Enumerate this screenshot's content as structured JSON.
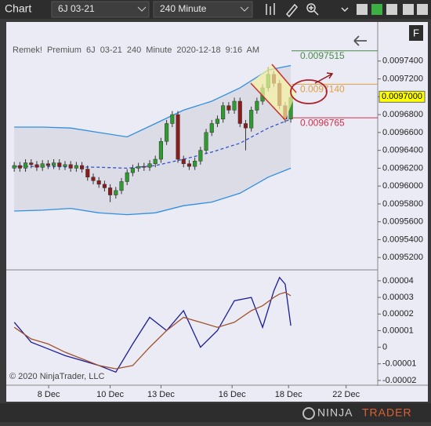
{
  "toolbar": {
    "title": "Chart",
    "instrument": "6J 03-21",
    "interval": "240 Minute",
    "panel_button": "F"
  },
  "chart_data": [
    {
      "type": "candlestick",
      "label": "Remek! Premium 6J 03-21 240 Minute 2020-12-18 9:16 AM",
      "open": [
        0.00962,
        0.009623,
        0.00962,
        0.009626,
        0.009624,
        0.009621,
        0.009625,
        0.009623,
        0.009626,
        0.009622,
        0.009624,
        0.00962,
        0.009623,
        0.009619,
        0.00961,
        0.009606,
        0.009602,
        0.009598,
        0.00959,
        0.009595,
        0.009605,
        0.009615,
        0.00962,
        0.009622,
        0.009621,
        0.009625,
        0.00963,
        0.00965,
        0.00967,
        0.00968,
        0.00963,
        0.009625,
        0.009622,
        0.009628,
        0.00964,
        0.00966,
        0.00967,
        0.009675,
        0.00969,
        0.009685,
        0.009695,
        0.00967,
        0.009665,
        0.009685,
        0.009695,
        0.00971,
        0.009725,
        0.009715,
        0.00969,
        0.009675
      ],
      "high": [
        0.009627,
        0.009627,
        0.00963,
        0.00963,
        0.009628,
        0.009629,
        0.009629,
        0.00963,
        0.00963,
        0.009628,
        0.009628,
        0.009627,
        0.009627,
        0.009623,
        0.009614,
        0.00961,
        0.009606,
        0.009602,
        0.009599,
        0.009609,
        0.009619,
        0.009624,
        0.009626,
        0.009626,
        0.009629,
        0.009634,
        0.009654,
        0.009674,
        0.009684,
        0.009684,
        0.009634,
        0.009629,
        0.009632,
        0.009644,
        0.009664,
        0.009674,
        0.009679,
        0.009694,
        0.009694,
        0.009699,
        0.009699,
        0.009674,
        0.009689,
        0.009699,
        0.009714,
        0.009733,
        0.009729,
        0.009719,
        0.009694,
        0.009703
      ],
      "low": [
        0.009616,
        0.009616,
        0.009616,
        0.00962,
        0.009617,
        0.009617,
        0.009619,
        0.009619,
        0.009618,
        0.009618,
        0.009616,
        0.009616,
        0.009615,
        0.009606,
        0.009602,
        0.009598,
        0.009594,
        0.009582,
        0.009586,
        0.009591,
        0.009601,
        0.009611,
        0.009616,
        0.009617,
        0.009617,
        0.009621,
        0.009626,
        0.009646,
        0.009666,
        0.009626,
        0.009621,
        0.009618,
        0.009618,
        0.009624,
        0.009636,
        0.009656,
        0.009666,
        0.009671,
        0.009681,
        0.009681,
        0.009666,
        0.00964,
        0.009661,
        0.009681,
        0.009691,
        0.009706,
        0.009711,
        0.009686,
        0.009671,
        0.009671
      ],
      "close": [
        0.009623,
        0.00962,
        0.009626,
        0.009624,
        0.009621,
        0.009625,
        0.009623,
        0.009626,
        0.009622,
        0.009624,
        0.00962,
        0.009623,
        0.009619,
        0.00961,
        0.009606,
        0.009602,
        0.009598,
        0.00959,
        0.009595,
        0.009605,
        0.009615,
        0.00962,
        0.009622,
        0.009621,
        0.009625,
        0.00963,
        0.00965,
        0.00967,
        0.00968,
        0.00963,
        0.009625,
        0.009622,
        0.009628,
        0.00964,
        0.00966,
        0.00967,
        0.009675,
        0.00969,
        0.009685,
        0.009695,
        0.00967,
        0.009665,
        0.009685,
        0.009695,
        0.00971,
        0.009725,
        0.009715,
        0.00969,
        0.009675,
        0.009699
      ],
      "up_color": "#2e9b2e",
      "down_color": "#8e1b1b",
      "xlim": [
        -0.3,
        64.4
      ],
      "ylim": [
        0.009507,
        0.009782
      ],
      "yticks": [
        {
          "value": 0.00974,
          "label": "0.0097400"
        },
        {
          "value": 0.00972,
          "label": "0.0097200"
        },
        {
          "value": 0.0097,
          "label": "0.0097000"
        },
        {
          "value": 0.00968,
          "label": "0.0096800"
        },
        {
          "value": 0.00966,
          "label": "0.0096600"
        },
        {
          "value": 0.00964,
          "label": "0.0096400"
        },
        {
          "value": 0.00962,
          "label": "0.0096200"
        },
        {
          "value": 0.0096,
          "label": "0.0096000"
        },
        {
          "value": 0.00958,
          "label": "0.0095800"
        },
        {
          "value": 0.00956,
          "label": "0.0095600"
        },
        {
          "value": 0.00954,
          "label": "0.0095400"
        },
        {
          "value": 0.00952,
          "label": "0.0095200"
        }
      ],
      "bands": {
        "x": [
          0,
          5,
          10,
          15,
          20,
          25,
          30,
          35,
          40,
          45,
          49
        ],
        "upper": [
          0.009666,
          0.009666,
          0.009665,
          0.00966,
          0.009655,
          0.00967,
          0.009685,
          0.009695,
          0.00971,
          0.00973,
          0.009735
        ],
        "middle": [
          0.009622,
          0.009622,
          0.0096215,
          0.009621,
          0.00962,
          0.009623,
          0.00963,
          0.009638,
          0.009648,
          0.009665,
          0.009675
        ],
        "lower": [
          0.009572,
          0.009573,
          0.009575,
          0.00957,
          0.009568,
          0.00957,
          0.009578,
          0.009582,
          0.009592,
          0.00961,
          0.00962
        ],
        "color": "#2f8fe0",
        "middle_color": "#3355cc",
        "fill": "#dcdce6"
      },
      "price_markers": [
        {
          "value": 0.0097515,
          "color": "#4a8a4a",
          "style": "line"
        },
        {
          "value": 0.009714,
          "label": "0.0097140",
          "color": "#e0a040",
          "style": "line"
        },
        {
          "value": 0.0097,
          "label": "0.0097000",
          "color": "#ffff00",
          "style": "box"
        },
        {
          "value": 0.0096765,
          "color": "#d0304a",
          "style": "line"
        }
      ]
    },
    {
      "type": "line",
      "x": [
        0,
        3,
        6,
        9,
        12,
        15,
        18,
        21,
        24,
        27,
        30,
        33,
        36,
        39,
        42,
        44,
        46,
        47,
        48,
        49
      ],
      "series": [
        {
          "color": "#1c1c9c",
          "values": [
            1.5e-05,
            3e-06,
            -1e-06,
            -5e-06,
            -8e-06,
            -1.1e-05,
            -1.5e-05,
            2e-06,
            1.8e-05,
            1e-05,
            2.2e-05,
            0,
            1e-05,
            2.8e-05,
            3e-05,
            1.2e-05,
            3.4e-05,
            4.2e-05,
            3.8e-05,
            1.3e-05
          ]
        },
        {
          "color": "#a0522d",
          "values": [
            1.2e-05,
            5e-06,
            2e-06,
            -3e-06,
            -7e-06,
            -1.1e-05,
            -1.3e-05,
            -1.1e-05,
            0,
            1e-05,
            1.8e-05,
            1.5e-05,
            1.2e-05,
            1.5e-05,
            2.2e-05,
            2.5e-05,
            3e-05,
            3.2e-05,
            3.3e-05,
            3.1e-05
          ]
        }
      ],
      "xlim": [
        -0.3,
        64.4
      ],
      "ylim": [
        -2.24e-05,
        4.61e-05
      ],
      "yticks": [
        4e-05,
        3e-05,
        2e-05,
        1e-05,
        0,
        -1e-05,
        -2e-05
      ],
      "xticks": [
        {
          "value": 6.1,
          "label": "8 Dec"
        },
        {
          "value": 17,
          "label": "10 Dec"
        },
        {
          "value": 26,
          "label": "13 Dec"
        },
        {
          "value": 38.6,
          "label": "16 Dec"
        },
        {
          "value": 48.6,
          "label": "18 Dec"
        },
        {
          "value": 58.8,
          "label": "22 Dec"
        }
      ]
    }
  ],
  "footer": {
    "copyright": "© 2020 NinjaTrader, LLC",
    "logo": [
      "NINJA",
      "TRADER"
    ]
  }
}
